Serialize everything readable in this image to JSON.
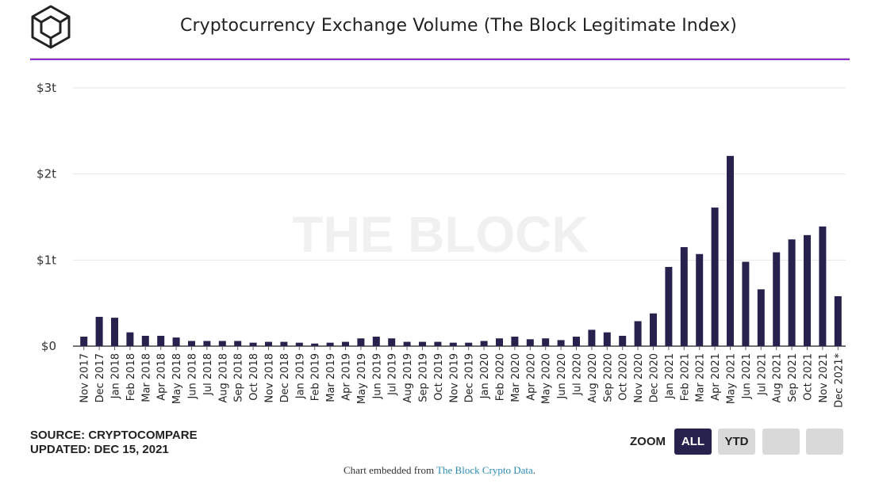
{
  "header": {
    "title": "Cryptocurrency Exchange Volume (The Block Legitimate Index)"
  },
  "chart_data": {
    "type": "bar",
    "title": "Cryptocurrency Exchange Volume (The Block Legitimate Index)",
    "xlabel": "",
    "ylabel": "",
    "ylim": [
      0,
      3
    ],
    "y_unit": "trillion USD",
    "y_ticks": [
      {
        "value": 0,
        "label": "$0"
      },
      {
        "value": 1,
        "label": "$1t"
      },
      {
        "value": 2,
        "label": "$2t"
      },
      {
        "value": 3,
        "label": "$3t"
      }
    ],
    "grid": true,
    "bar_color": "#27214d",
    "categories": [
      "Nov 2017",
      "Dec 2017",
      "Jan 2018",
      "Feb 2018",
      "Mar 2018",
      "Apr 2018",
      "May 2018",
      "Jun 2018",
      "Jul 2018",
      "Aug 2018",
      "Sep 2018",
      "Oct 2018",
      "Nov 2018",
      "Dec 2018",
      "Jan 2019",
      "Feb 2019",
      "Mar 2019",
      "Apr 2019",
      "May 2019",
      "Jun 2019",
      "Jul 2019",
      "Aug 2019",
      "Sep 2019",
      "Oct 2019",
      "Nov 2019",
      "Dec 2019",
      "Jan 2020",
      "Feb 2020",
      "Mar 2020",
      "Apr 2020",
      "May 2020",
      "Jun 2020",
      "Jul 2020",
      "Aug 2020",
      "Sep 2020",
      "Oct 2020",
      "Nov 2020",
      "Dec 2020",
      "Jan 2021",
      "Feb 2021",
      "Mar 2021",
      "Apr 2021",
      "May 2021",
      "Jun 2021",
      "Jul 2021",
      "Aug 2021",
      "Sep 2021",
      "Oct 2021",
      "Nov 2021",
      "Dec 2021*"
    ],
    "values": [
      0.11,
      0.34,
      0.33,
      0.16,
      0.12,
      0.12,
      0.1,
      0.06,
      0.06,
      0.06,
      0.06,
      0.04,
      0.05,
      0.05,
      0.04,
      0.03,
      0.04,
      0.05,
      0.09,
      0.11,
      0.09,
      0.05,
      0.05,
      0.05,
      0.04,
      0.04,
      0.06,
      0.09,
      0.11,
      0.08,
      0.09,
      0.07,
      0.11,
      0.19,
      0.16,
      0.12,
      0.29,
      0.38,
      0.92,
      1.15,
      1.07,
      1.61,
      2.21,
      0.98,
      0.66,
      1.09,
      1.24,
      1.29,
      1.39,
      0.58
    ],
    "watermark": "THE BLOCK"
  },
  "footer": {
    "source": "SOURCE: CRYPTOCOMPARE",
    "updated": "UPDATED: DEC 15, 2021",
    "zoom_label": "ZOOM",
    "zoom_buttons": [
      {
        "label": "ALL",
        "active": true
      },
      {
        "label": "YTD",
        "active": false
      },
      {
        "label": "",
        "active": false
      },
      {
        "label": "",
        "active": false
      }
    ],
    "embed_prefix": "Chart embedded from",
    "embed_link": "The Block Crypto Data",
    "embed_suffix": "."
  },
  "colors": {
    "accent": "#8e2bd3",
    "bar": "#27214d",
    "link": "#2d8bb5"
  }
}
